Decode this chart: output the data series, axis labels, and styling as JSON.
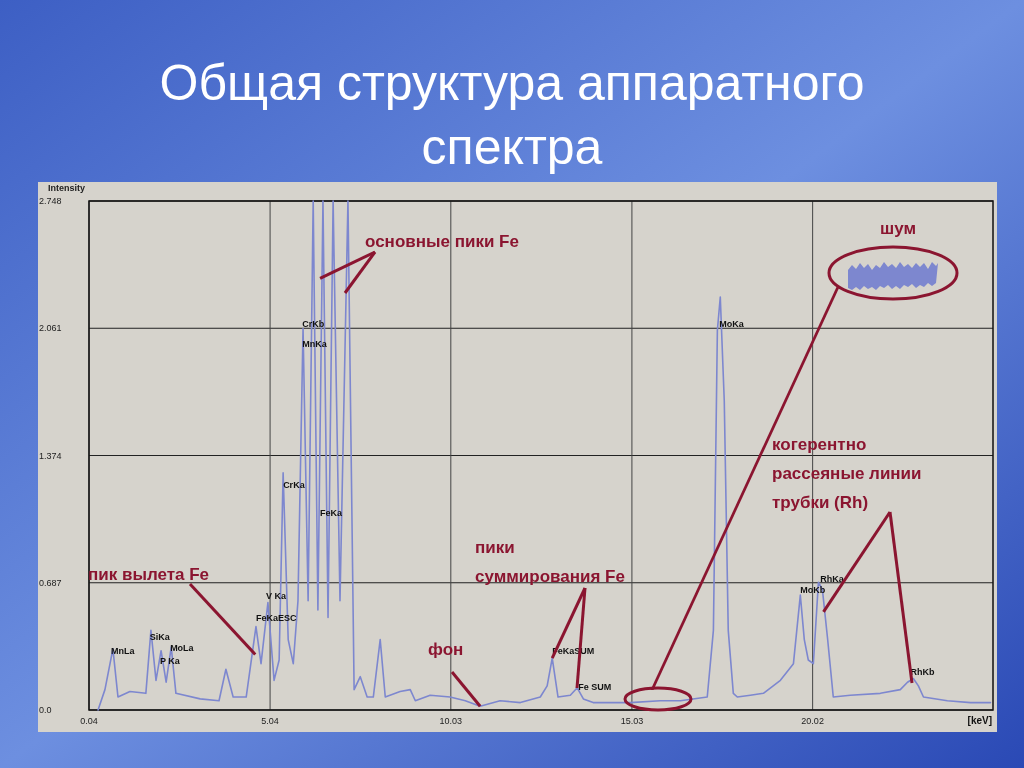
{
  "chart_data": {
    "type": "line",
    "title": "Общая структура аппаратного спектра",
    "xlabel": "[keV]",
    "ylabel": "Intensity",
    "xlim": [
      0.04,
      25.0
    ],
    "xticks": [
      0.04,
      5.04,
      10.03,
      15.03,
      20.02
    ],
    "ylim": [
      0,
      2.748
    ],
    "yticks": [
      {
        "value": 0,
        "label": "0.0"
      },
      0.687,
      1.374,
      2.061,
      2.748
    ],
    "grid": true,
    "series": [
      {
        "color": "#7d87cf",
        "x": [
          0.29,
          0.48,
          0.7,
          0.84,
          1.17,
          1.61,
          1.75,
          1.89,
          2.03,
          2.17,
          2.31,
          2.44,
          3.11,
          3.63,
          3.82,
          4.02,
          4.38,
          4.65,
          4.79,
          4.98,
          5.15,
          5.29,
          5.4,
          5.54,
          5.68,
          5.81,
          5.95,
          6.09,
          6.23,
          6.36,
          6.5,
          6.64,
          6.78,
          6.97,
          7.19,
          7.36,
          7.53,
          7.72,
          7.89,
          8.08,
          8.22,
          8.63,
          8.91,
          9.05,
          9.46,
          10.01,
          10.43,
          10.84,
          11.39,
          11.95,
          12.5,
          12.69,
          12.83,
          12.99,
          13.33,
          13.52,
          13.69,
          13.96,
          14.43,
          14.98,
          15.81,
          16.37,
          17.11,
          17.28,
          17.39,
          17.47,
          17.58,
          17.69,
          17.83,
          17.94,
          18.3,
          18.66,
          19.13,
          19.49,
          19.68,
          19.79,
          19.9,
          20.04,
          20.18,
          20.29,
          20.43,
          20.59,
          21.06,
          21.89,
          22.44,
          22.64,
          22.8,
          22.94,
          23.08,
          23.74,
          24.38,
          24.93
        ],
        "values": [
          0,
          0.11,
          0.33,
          0.07,
          0.1,
          0.09,
          0.43,
          0.16,
          0.32,
          0.15,
          0.34,
          0.09,
          0.06,
          0.05,
          0.22,
          0.07,
          0.07,
          0.45,
          0.25,
          0.58,
          0.16,
          0.27,
          1.28,
          0.38,
          0.25,
          0.59,
          2.06,
          0.59,
          2.748,
          0.54,
          2.748,
          0.5,
          2.748,
          0.59,
          2.748,
          0.11,
          0.18,
          0.07,
          0.07,
          0.38,
          0.07,
          0.1,
          0.11,
          0.05,
          0.08,
          0.07,
          0.05,
          0.02,
          0.05,
          0.04,
          0.07,
          0.13,
          0.28,
          0.07,
          0.08,
          0.12,
          0.06,
          0.04,
          0.04,
          0.04,
          0.05,
          0.05,
          0.07,
          0.43,
          2.05,
          2.23,
          1.67,
          0.43,
          0.09,
          0.07,
          0.08,
          0.09,
          0.16,
          0.25,
          0.62,
          0.38,
          0.27,
          0.25,
          0.69,
          0.65,
          0.39,
          0.07,
          0.08,
          0.09,
          0.11,
          0.15,
          0.17,
          0.13,
          0.07,
          0.05,
          0.04,
          0.04
        ]
      }
    ],
    "annotations": [
      {
        "text": "MnLa",
        "x": 0.65,
        "y": 0.3
      },
      {
        "text": "SiKa",
        "x": 1.72,
        "y": 0.38
      },
      {
        "text": "MoLa",
        "x": 2.28,
        "y": 0.32
      },
      {
        "text": "P Ka",
        "x": 2.0,
        "y": 0.25
      },
      {
        "text": "V Ka",
        "x": 4.93,
        "y": 0.6
      },
      {
        "text": "FeKaESC",
        "x": 4.65,
        "y": 0.48
      },
      {
        "text": "CrKa",
        "x": 5.4,
        "y": 1.2
      },
      {
        "text": "CrKb",
        "x": 5.93,
        "y": 2.07
      },
      {
        "text": "MnKa",
        "x": 5.93,
        "y": 1.96
      },
      {
        "text": "FeKa",
        "x": 6.42,
        "y": 1.05
      },
      {
        "text": "FeKaSUM",
        "x": 12.83,
        "y": 0.3
      },
      {
        "text": "Fe SUM",
        "x": 13.55,
        "y": 0.11
      },
      {
        "text": "MoKa",
        "x": 17.44,
        "y": 2.07
      },
      {
        "text": "MoKb",
        "x": 19.68,
        "y": 0.63
      },
      {
        "text": "RhKa",
        "x": 20.23,
        "y": 0.69
      },
      {
        "text": "RhKb",
        "x": 22.72,
        "y": 0.19
      },
      {
        "text": "основные пики Fe",
        "x": 6.42,
        "y": 2.33
      },
      "шум",
      {
        "text": "пик вылета Fe",
        "x": 4.63,
        "y": 0.3
      },
      {
        "text": "пики суммирования Fe",
        "x": 12.83,
        "y": 0.28
      },
      {
        "text": "фон",
        "x": 10.84,
        "y": 0.02
      },
      {
        "text": "когерентно рассеяные линии трубки (Rh)",
        "x": 20.32,
        "y": 0.53
      }
    ]
  }
}
